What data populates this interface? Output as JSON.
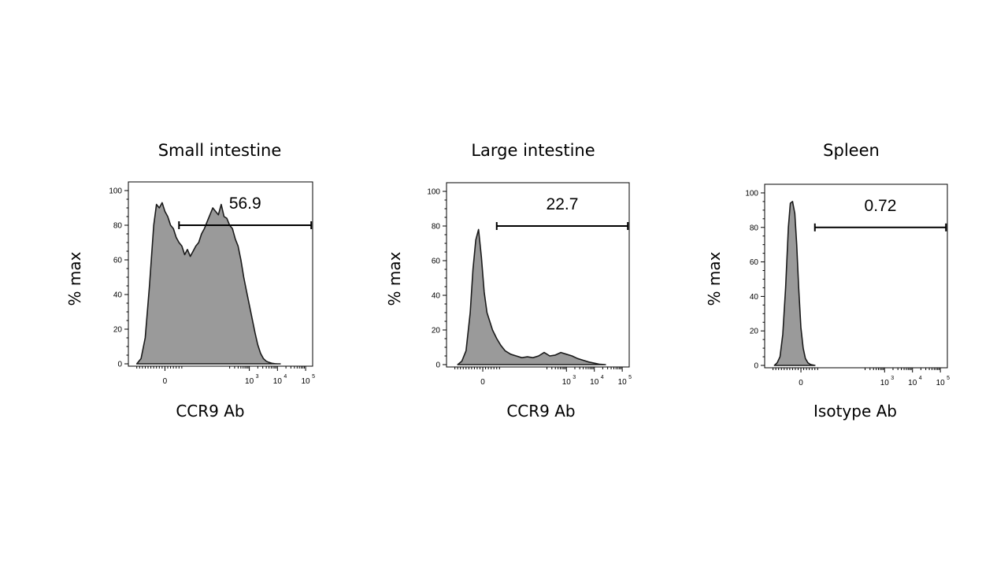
{
  "chart_data": [
    {
      "type": "area",
      "title": "Small intestine",
      "xlabel": "CCR9 Ab",
      "ylabel": "% max",
      "ylim": [
        0,
        105
      ],
      "yticks": [
        0,
        20,
        40,
        60,
        80,
        100
      ],
      "xticks": [
        {
          "value": 0,
          "base": "0",
          "exp": ""
        },
        {
          "value": 3,
          "base": "10",
          "exp": "3"
        },
        {
          "value": 4,
          "base": "10",
          "exp": "4"
        },
        {
          "value": 5,
          "base": "10",
          "exp": "5"
        }
      ],
      "xlim": [
        -1.3,
        5.25
      ],
      "gate": {
        "label": "56.9",
        "start": 0.5,
        "end": 5.2,
        "level": 80
      },
      "series": [
        {
          "name": "CCR9 Ab",
          "x": [
            -1.0,
            -0.85,
            -0.7,
            -0.55,
            -0.4,
            -0.3,
            -0.2,
            -0.1,
            0,
            0.1,
            0.2,
            0.3,
            0.4,
            0.5,
            0.6,
            0.7,
            0.8,
            0.9,
            1.0,
            1.1,
            1.2,
            1.3,
            1.4,
            1.5,
            1.6,
            1.7,
            1.8,
            1.9,
            2.0,
            2.1,
            2.2,
            2.3,
            2.4,
            2.5,
            2.6,
            2.7,
            2.8,
            2.9,
            3.0,
            3.1,
            3.2,
            3.3,
            3.4,
            3.5,
            3.6,
            3.7,
            3.8,
            3.9,
            4.0,
            4.1
          ],
          "y": [
            0,
            3,
            15,
            45,
            80,
            92,
            90,
            93,
            88,
            85,
            80,
            78,
            73,
            70,
            68,
            63,
            66,
            62,
            65,
            68,
            70,
            75,
            78,
            82,
            86,
            90,
            88,
            86,
            92,
            85,
            84,
            80,
            78,
            72,
            68,
            60,
            50,
            42,
            34,
            26,
            18,
            11,
            6,
            3,
            1.5,
            0.8,
            0.3,
            0.1,
            0,
            0
          ]
        }
      ]
    },
    {
      "type": "area",
      "title": "Large intestine",
      "xlabel": "CCR9 Ab",
      "ylabel": "% max",
      "ylim": [
        0,
        105
      ],
      "yticks": [
        0,
        20,
        40,
        60,
        80,
        100
      ],
      "xticks": [
        {
          "value": 0,
          "base": "0",
          "exp": ""
        },
        {
          "value": 3,
          "base": "10",
          "exp": "3"
        },
        {
          "value": 4,
          "base": "10",
          "exp": "4"
        },
        {
          "value": 5,
          "base": "10",
          "exp": "5"
        }
      ],
      "xlim": [
        -1.3,
        5.25
      ],
      "gate": {
        "label": "22.7",
        "start": 0.5,
        "end": 5.2,
        "level": 80
      },
      "series": [
        {
          "name": "CCR9 Ab",
          "x": [
            -0.9,
            -0.75,
            -0.6,
            -0.45,
            -0.35,
            -0.25,
            -0.15,
            -0.05,
            0.05,
            0.15,
            0.25,
            0.35,
            0.5,
            0.65,
            0.8,
            1.0,
            1.2,
            1.4,
            1.6,
            1.8,
            2.0,
            2.2,
            2.4,
            2.6,
            2.8,
            3.0,
            3.2,
            3.4,
            3.6,
            3.8,
            4.0,
            4.2,
            4.4
          ],
          "y": [
            0,
            2,
            8,
            30,
            55,
            72,
            78,
            62,
            42,
            30,
            25,
            20,
            15,
            11,
            8,
            6,
            5,
            4,
            4.5,
            4,
            5,
            7,
            5,
            5.5,
            7,
            6,
            5,
            3.5,
            2.5,
            1.5,
            0.8,
            0.2,
            0
          ]
        }
      ]
    },
    {
      "type": "area",
      "title": "Spleen",
      "xlabel": "Isotype Ab",
      "ylabel": "% max",
      "ylim": [
        0,
        105
      ],
      "yticks": [
        0,
        20,
        40,
        60,
        80,
        100
      ],
      "xticks": [
        {
          "value": 0,
          "base": "0",
          "exp": ""
        },
        {
          "value": 3,
          "base": "10",
          "exp": "3"
        },
        {
          "value": 4,
          "base": "10",
          "exp": "4"
        },
        {
          "value": 5,
          "base": "10",
          "exp": "5"
        }
      ],
      "xlim": [
        -1.3,
        5.25
      ],
      "gate": {
        "label": "0.72",
        "start": 0.5,
        "end": 5.2,
        "level": 80
      },
      "series": [
        {
          "name": "Isotype Ab",
          "x": [
            -0.95,
            -0.85,
            -0.75,
            -0.65,
            -0.55,
            -0.45,
            -0.38,
            -0.3,
            -0.22,
            -0.15,
            -0.08,
            0.0,
            0.08,
            0.16,
            0.25,
            0.35,
            0.5
          ],
          "y": [
            0,
            1.5,
            5,
            18,
            45,
            80,
            94,
            95,
            88,
            70,
            45,
            22,
            10,
            4,
            1.5,
            0.5,
            0
          ]
        }
      ]
    }
  ]
}
